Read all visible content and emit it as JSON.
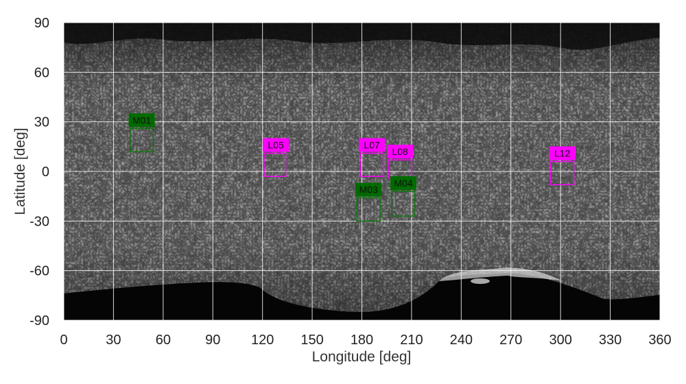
{
  "chart_data": {
    "type": "map",
    "xlabel": "Longitude [deg]",
    "ylabel": "Latitude [deg]",
    "xlim": [
      0,
      360
    ],
    "ylim": [
      -90,
      90
    ],
    "xticks": [
      0,
      30,
      60,
      90,
      120,
      150,
      180,
      210,
      240,
      270,
      300,
      330,
      360
    ],
    "yticks": [
      90,
      60,
      30,
      0,
      -30,
      -60,
      -90
    ],
    "grid": true,
    "sites": [
      {
        "name": "M01",
        "type": "M",
        "lon_min": 40,
        "lon_max": 54,
        "lat_min": 12,
        "lat_max": 26
      },
      {
        "name": "L05",
        "type": "L",
        "lon_min": 121,
        "lon_max": 134,
        "lat_min": -3,
        "lat_max": 11
      },
      {
        "name": "L07",
        "type": "L",
        "lon_min": 179,
        "lon_max": 193,
        "lat_min": -3,
        "lat_max": 11
      },
      {
        "name": "L08",
        "type": "L",
        "lon_min": 196,
        "lon_max": 210,
        "lat_min": -4,
        "lat_max": 7
      },
      {
        "name": "L12",
        "type": "L",
        "lon_min": 294,
        "lon_max": 308,
        "lat_min": -8,
        "lat_max": 6
      },
      {
        "name": "M03",
        "type": "M",
        "lon_min": 177,
        "lon_max": 191,
        "lat_min": -30,
        "lat_max": -16
      },
      {
        "name": "M04",
        "type": "M",
        "lon_min": 198,
        "lon_max": 212,
        "lat_min": -27,
        "lat_max": -12
      }
    ],
    "colors": {
      "L_box": "#ff00ff",
      "M_box": "#006b00",
      "M_stroke": "#0a7a0a",
      "grid": "#ffffff"
    }
  }
}
